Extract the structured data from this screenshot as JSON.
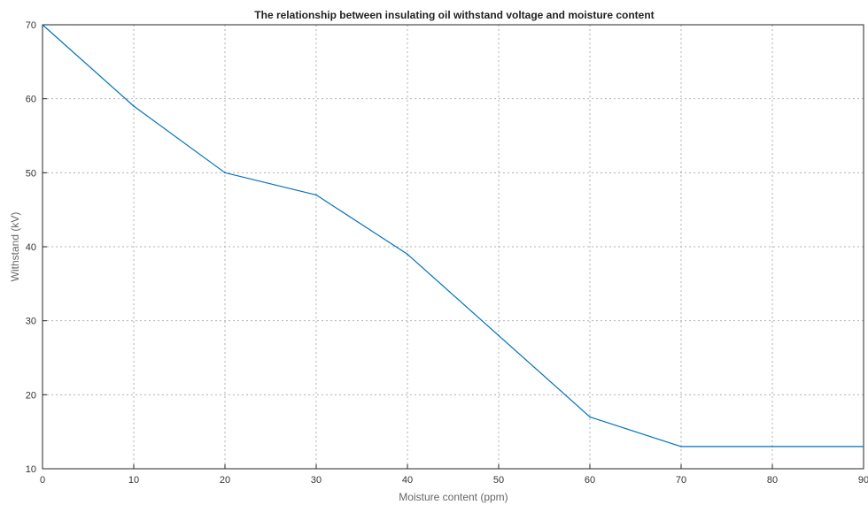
{
  "chart_data": {
    "type": "line",
    "title": "The relationship between insulating oil withstand  voltage and moisture content",
    "xlabel": "Moisture content (ppm)",
    "ylabel": "Withstand (kV)",
    "xlim": [
      0,
      90
    ],
    "ylim": [
      10,
      70
    ],
    "xticks": [
      "0",
      "10",
      "20",
      "30",
      "40",
      "50",
      "60",
      "70",
      "80",
      "90"
    ],
    "yticks": [
      "10",
      "20",
      "30",
      "40",
      "50",
      "60",
      "70"
    ],
    "grid": true,
    "series": [
      {
        "color": "#0072bd",
        "x": [
          0,
          10,
          20,
          30,
          40,
          50,
          60,
          70,
          80,
          90
        ],
        "y": [
          70,
          59,
          50,
          47,
          39,
          28,
          17,
          13,
          13,
          13
        ]
      }
    ]
  }
}
